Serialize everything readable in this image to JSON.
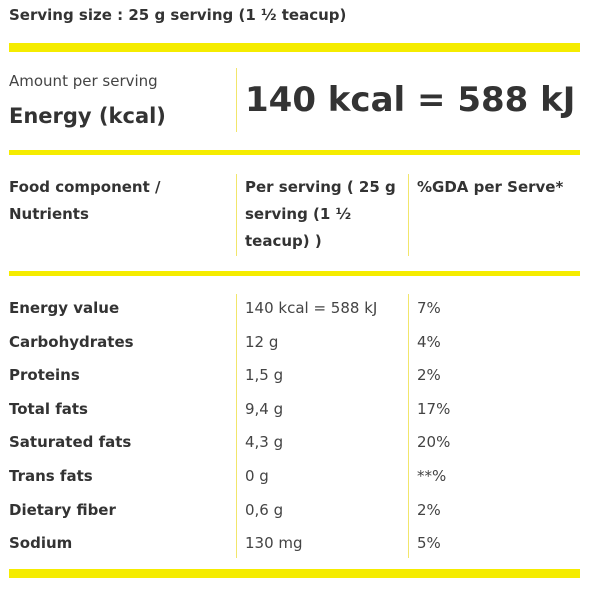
{
  "serving_size": "Serving size : 25 g serving (1 ½ teacup)",
  "amount_label": "Amount per serving",
  "energy_label": "Energy (kcal)",
  "energy_value": "140 kcal = 588 kJ",
  "headers": {
    "component": "Food component / Nutrients",
    "per_serving": "Per serving ( 25 g serving (1 ½ teacup) )",
    "gda": "%GDA per Serve*"
  },
  "nutrients": [
    {
      "name": "Energy value",
      "per_serving": "140 kcal = 588 kJ",
      "gda": "7%"
    },
    {
      "name": "Carbohydrates",
      "per_serving": "12 g",
      "gda": "4%"
    },
    {
      "name": "Proteins",
      "per_serving": "1,5 g",
      "gda": "2%"
    },
    {
      "name": "Total fats",
      "per_serving": "9,4 g",
      "gda": "17%"
    },
    {
      "name": "Saturated fats",
      "per_serving": "4,3 g",
      "gda": "20%"
    },
    {
      "name": "Trans fats",
      "per_serving": "0 g",
      "gda": "**%"
    },
    {
      "name": "Dietary fiber",
      "per_serving": "0,6 g",
      "gda": "2%"
    },
    {
      "name": "Sodium",
      "per_serving": "130 mg",
      "gda": "5%"
    }
  ],
  "colors": {
    "accent_bar": "#f5ec00",
    "divider": "#f2e66b",
    "text": "#333333"
  }
}
